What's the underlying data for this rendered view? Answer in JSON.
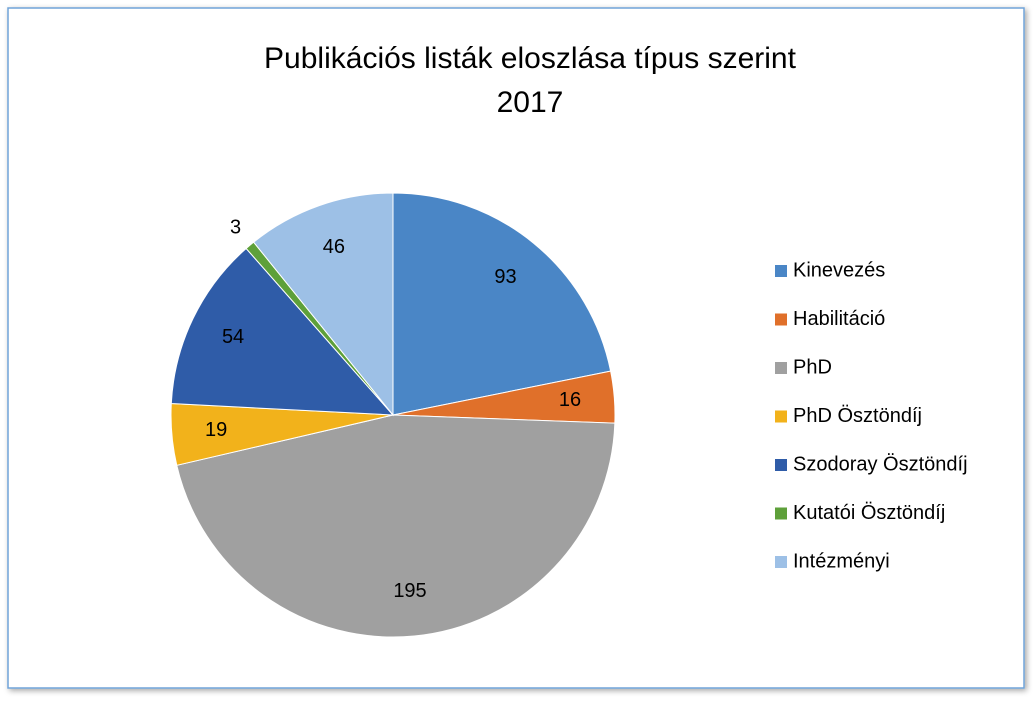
{
  "chart_data": {
    "type": "pie",
    "title": "Publikációs listák eloszlása típus szerint",
    "subtitle": "2017",
    "categories": [
      "Kinevezés",
      "Habilitáció",
      "PhD",
      "PhD Ösztöndíj",
      "Szodoray Ösztöndíj",
      "Kutatói Ösztöndíj",
      "Intézményi"
    ],
    "values": [
      93,
      16,
      195,
      19,
      54,
      3,
      46
    ],
    "colors": [
      "#4a86c6",
      "#e0702a",
      "#a0a0a0",
      "#f2b21b",
      "#2f5ca8",
      "#5ea03a",
      "#9dc0e6"
    ],
    "legend": "right"
  }
}
